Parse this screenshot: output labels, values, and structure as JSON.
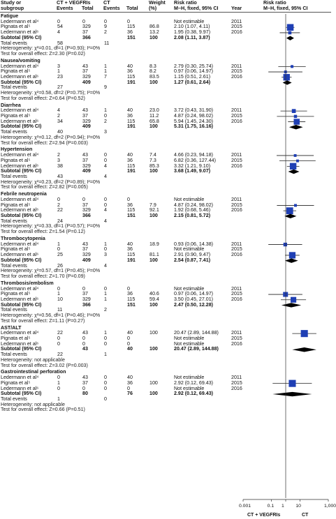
{
  "headers": {
    "study": "Study or",
    "study2": "subgroup",
    "exp": "CT + VEGFRIs",
    "exp_e": "Events",
    "exp_t": "Total",
    "ctl": "CT",
    "ctl_e": "Events",
    "ctl_t": "Total",
    "w": "Weight",
    "w2": "(%)",
    "rr": "Risk ratio",
    "rr2": "M–H, fixed, 95% CI",
    "yr": "Year",
    "rrp": "Risk ratio",
    "rrp2": "M–H, fixed, 95% CI"
  },
  "legend": {
    "left": "CT + VEGFRIs",
    "right": "CT"
  },
  "chart_data": {
    "type": "forest",
    "x_scale": "log",
    "xlim": [
      0.001,
      1000
    ],
    "x_ticks": [
      "0.001",
      "0.1",
      "1",
      "10",
      "1,000"
    ],
    "x_tick_values": [
      0.001,
      0.1,
      1,
      10,
      1000
    ],
    "groups": [
      {
        "name": "Fatigue",
        "studies": [
          {
            "study": "Ledermann et al⁴",
            "e1": "0",
            "t1": "0",
            "e2": "0",
            "t2": "0",
            "w": "",
            "rr": "Not estimable",
            "year": "2011",
            "est": null,
            "lo": null,
            "hi": null
          },
          {
            "study": "Pignata et al⁵",
            "e1": "54",
            "t1": "329",
            "e2": "9",
            "t2": "115",
            "w": "86.8",
            "rr": "2.10 (1.07, 4.11)",
            "year": "2015",
            "est": 2.1,
            "lo": 1.07,
            "hi": 4.11
          },
          {
            "study": "Ledermann et al⁶",
            "e1": "4",
            "t1": "37",
            "e2": "2",
            "t2": "36",
            "w": "13.2",
            "rr": "1.95 (0.38, 9.97)",
            "year": "2016",
            "est": 1.95,
            "lo": 0.38,
            "hi": 9.97
          }
        ],
        "subtotal": {
          "label": "Subtotal (95% CI)",
          "t1": "366",
          "t2": "151",
          "w": "100",
          "rr": "2.08 (1.11, 3.87)",
          "est": 2.08,
          "lo": 1.11,
          "hi": 3.87
        },
        "total_events": {
          "label": "Total events",
          "e1": "58",
          "e2": "11"
        },
        "het": "Heterogeneity: χ²=0.01, df=1 (P=0.93); I²=0%",
        "test": "Test for overall effect: Z=2.30 (P=0.02)"
      },
      {
        "name": "Nausea/vomiting",
        "studies": [
          {
            "study": "Ledermann et al⁴",
            "e1": "3",
            "t1": "43",
            "e2": "1",
            "t2": "40",
            "w": "8.3",
            "rr": "2.79 (0.30, 25.74)",
            "year": "2011",
            "est": 2.79,
            "lo": 0.3,
            "hi": 25.74
          },
          {
            "study": "Pignata et al⁵",
            "e1": "1",
            "t1": "37",
            "e2": "1",
            "t2": "36",
            "w": "8.2",
            "rr": "0.97 (0.06, 14.97)",
            "year": "2015",
            "est": 0.97,
            "lo": 0.06,
            "hi": 14.97
          },
          {
            "study": "Ledermann et al⁶",
            "e1": "23",
            "t1": "329",
            "e2": "7",
            "t2": "115",
            "w": "83.5",
            "rr": "1.15 (0.51, 2.61)",
            "year": "2016",
            "est": 1.15,
            "lo": 0.51,
            "hi": 2.61
          }
        ],
        "subtotal": {
          "label": "Subtotal (95% CI)",
          "t1": "409",
          "t2": "191",
          "w": "100",
          "rr": "1.27 (0.61, 2.64)",
          "est": 1.27,
          "lo": 0.61,
          "hi": 2.64
        },
        "total_events": {
          "label": "Total events",
          "e1": "27",
          "e2": "9"
        },
        "het": "Heterogeneity: χ²=0.58, df=2 (P=0.75); I²=0%",
        "test": "Test for overall effect: Z=0.64 (P=0.52)"
      },
      {
        "name": "Diarrhea",
        "studies": [
          {
            "study": "Ledermann et al⁴",
            "e1": "4",
            "t1": "43",
            "e2": "1",
            "t2": "40",
            "w": "23.0",
            "rr": "3.72 (0.43, 31.90)",
            "year": "2011",
            "est": 3.72,
            "lo": 0.43,
            "hi": 31.9
          },
          {
            "study": "Pignata et al⁵",
            "e1": "2",
            "t1": "37",
            "e2": "0",
            "t2": "36",
            "w": "11.2",
            "rr": "4.87 (0.24, 98.02)",
            "year": "2015",
            "est": 4.87,
            "lo": 0.24,
            "hi": 98.02
          },
          {
            "study": "Ledermann et al⁶",
            "e1": "34",
            "t1": "329",
            "e2": "2",
            "t2": "115",
            "w": "65.8",
            "rr": "5.94 (1.45, 24.30)",
            "year": "2016",
            "est": 5.94,
            "lo": 1.45,
            "hi": 24.3
          }
        ],
        "subtotal": {
          "label": "Subtotal (95% CI)",
          "t1": "409",
          "t2": "191",
          "w": "100",
          "rr": "5.31 (1.75, 16.16)",
          "est": 5.31,
          "lo": 1.75,
          "hi": 16.16
        },
        "total_events": {
          "label": "Total events",
          "e1": "40",
          "e2": "3"
        },
        "het": "Heterogeneity: χ²=0.12, df=2 (P=0.94); I²=0%",
        "test": "Test for overall effect: Z=2.94 (P=0.003)"
      },
      {
        "name": "Hypertension",
        "studies": [
          {
            "study": "Ledermann et al⁴",
            "e1": "2",
            "t1": "43",
            "e2": "0",
            "t2": "40",
            "w": "7.4",
            "rr": "4.66 (0.23, 94.18)",
            "year": "2011",
            "est": 4.66,
            "lo": 0.23,
            "hi": 94.18
          },
          {
            "study": "Pignata et al⁵",
            "e1": "3",
            "t1": "37",
            "e2": "0",
            "t2": "36",
            "w": "7.3",
            "rr": "6.82 (0.36, 127.44)",
            "year": "2015",
            "est": 6.82,
            "lo": 0.36,
            "hi": 127.44
          },
          {
            "study": "Ledermann et al⁶",
            "e1": "38",
            "t1": "329",
            "e2": "4",
            "t2": "115",
            "w": "85.3",
            "rr": "3.32 (1.21, 9.10)",
            "year": "2016",
            "est": 3.32,
            "lo": 1.21,
            "hi": 9.1
          }
        ],
        "subtotal": {
          "label": "Subtotal (95% CI)",
          "t1": "409",
          "t2": "191",
          "w": "100",
          "rr": "3.68 (1.49, 9.07)",
          "est": 3.68,
          "lo": 1.49,
          "hi": 9.07
        },
        "total_events": {
          "label": "Total events",
          "e1": "43",
          "e2": "4"
        },
        "het": "Heterogeneity: χ²=0.23, df=2 (P=0.89); I²=0%",
        "test": "Test for overall effect: Z=2.82 (P=0.005)"
      },
      {
        "name": "Febrile neutropenia",
        "studies": [
          {
            "study": "Ledermann et al⁴",
            "e1": "0",
            "t1": "0",
            "e2": "0",
            "t2": "0",
            "w": "",
            "rr": "Not estimable",
            "year": "2011",
            "est": null,
            "lo": null,
            "hi": null
          },
          {
            "study": "Pignata et al⁵",
            "e1": "2",
            "t1": "37",
            "e2": "0",
            "t2": "36",
            "w": "7.9",
            "rr": "4.87 (0.24, 98.02)",
            "year": "2015",
            "est": 4.87,
            "lo": 0.24,
            "hi": 98.02
          },
          {
            "study": "Ledermann et al⁶",
            "e1": "22",
            "t1": "329",
            "e2": "4",
            "t2": "115",
            "w": "92.1",
            "rr": "1.92 (0.68, 5.46)",
            "year": "2016",
            "est": 1.92,
            "lo": 0.68,
            "hi": 5.46
          }
        ],
        "subtotal": {
          "label": "Subtotal (95% CI)",
          "t1": "366",
          "t2": "151",
          "w": "100",
          "rr": "2.15 (0.81, 5.72)",
          "est": 2.15,
          "lo": 0.81,
          "hi": 5.72
        },
        "total_events": {
          "label": "Total events",
          "e1": "24",
          "e2": "4"
        },
        "het": "Heterogeneity: χ²=0.33, df=1 (P=0.57); I²=0%",
        "test": "Test for overall effect: Z=1.54 (P=0.12)"
      },
      {
        "name": "Thrombocytopenia",
        "studies": [
          {
            "study": "Ledermann et al⁴",
            "e1": "1",
            "t1": "43",
            "e2": "1",
            "t2": "40",
            "w": "18.9",
            "rr": "0.93 (0.06, 14.38)",
            "year": "2011",
            "est": 0.93,
            "lo": 0.06,
            "hi": 14.38
          },
          {
            "study": "Pignata et al⁵",
            "e1": "0",
            "t1": "37",
            "e2": "0",
            "t2": "36",
            "w": "",
            "rr": "Not estimable",
            "year": "2015",
            "est": null,
            "lo": null,
            "hi": null
          },
          {
            "study": "Ledermann et al⁶",
            "e1": "25",
            "t1": "329",
            "e2": "3",
            "t2": "115",
            "w": "81.1",
            "rr": "2.91 (0.90, 9.47)",
            "year": "2016",
            "est": 2.91,
            "lo": 0.9,
            "hi": 9.47
          }
        ],
        "subtotal": {
          "label": "Subtotal (95% CI)",
          "t1": "409",
          "t2": "191",
          "w": "100",
          "rr": "2.54 (0.87, 7.41)",
          "est": 2.54,
          "lo": 0.87,
          "hi": 7.41
        },
        "total_events": {
          "label": "Total events",
          "e1": "26",
          "e2": "4"
        },
        "het": "Heterogeneity: χ²=0.57, df=1 (P=0.45); I²=0%",
        "test": "Test for overall effect: Z=1.70 (P=0.09)"
      },
      {
        "name": "Thrombosis/embolism",
        "studies": [
          {
            "study": "Ledermann et al⁴",
            "e1": "0",
            "t1": "0",
            "e2": "0",
            "t2": "0",
            "w": "",
            "rr": "Not estimable",
            "year": "2011",
            "est": null,
            "lo": null,
            "hi": null
          },
          {
            "study": "Pignata et al⁵",
            "e1": "1",
            "t1": "37",
            "e2": "1",
            "t2": "36",
            "w": "40.6",
            "rr": "0.97 (0.06, 14.97)",
            "year": "2015",
            "est": 0.97,
            "lo": 0.06,
            "hi": 14.97
          },
          {
            "study": "Ledermann et al⁶",
            "e1": "10",
            "t1": "329",
            "e2": "1",
            "t2": "115",
            "w": "59.4",
            "rr": "3.50 (0.45, 27.01)",
            "year": "2016",
            "est": 3.5,
            "lo": 0.45,
            "hi": 27.01
          }
        ],
        "subtotal": {
          "label": "Subtotal (95% CI)",
          "t1": "366",
          "t2": "151",
          "w": "100",
          "rr": "2.47 (0.50, 12.28)",
          "est": 2.47,
          "lo": 0.5,
          "hi": 12.28
        },
        "total_events": {
          "label": "Total events",
          "e1": "11",
          "e2": "2"
        },
        "het": "Heterogeneity: χ²=0.56, df=1 (P=0.46); I²=0%",
        "test": "Test for overall effect: Z=1.11 (P=0.27)"
      },
      {
        "name": "AST/ALT",
        "studies": [
          {
            "study": "Ledermann et al⁴",
            "e1": "22",
            "t1": "43",
            "e2": "1",
            "t2": "40",
            "w": "100",
            "rr": "20.47 (2.89, 144.88)",
            "year": "2011",
            "est": 20.47,
            "lo": 2.89,
            "hi": 144.88
          },
          {
            "study": "Pignata et al⁵",
            "e1": "0",
            "t1": "0",
            "e2": "0",
            "t2": "0",
            "w": "",
            "rr": "Not estimable",
            "year": "2015",
            "est": null,
            "lo": null,
            "hi": null
          },
          {
            "study": "Ledermann et al⁶",
            "e1": "0",
            "t1": "0",
            "e2": "0",
            "t2": "0",
            "w": "",
            "rr": "Not estimable",
            "year": "2016",
            "est": null,
            "lo": null,
            "hi": null
          }
        ],
        "subtotal": {
          "label": "Subtotal (95% CI)",
          "t1": "43",
          "t2": "40",
          "w": "100",
          "rr": "20.47 (2.89, 144.88)",
          "est": 20.47,
          "lo": 2.89,
          "hi": 144.88
        },
        "total_events": {
          "label": "Total events",
          "e1": "22",
          "e2": "1"
        },
        "het": "Heterogeneity: not applicable",
        "test": "Test for overall effect: Z=3.02 (P=0.003)"
      },
      {
        "name": "Gastrointestinal perforation",
        "studies": [
          {
            "study": "Ledermann et al⁴",
            "e1": "0",
            "t1": "43",
            "e2": "0",
            "t2": "40",
            "w": "",
            "rr": "Not estimable",
            "year": "2011",
            "est": null,
            "lo": null,
            "hi": null
          },
          {
            "study": "Pignata et al⁵",
            "e1": "1",
            "t1": "37",
            "e2": "0",
            "t2": "36",
            "w": "100",
            "rr": "2.92 (0.12, 69.43)",
            "year": "2015",
            "est": 2.92,
            "lo": 0.12,
            "hi": 69.43
          },
          {
            "study": "Ledermann et al⁶",
            "e1": "0",
            "t1": "0",
            "e2": "0",
            "t2": "0",
            "w": "",
            "rr": "Not estimable",
            "year": "2016",
            "est": null,
            "lo": null,
            "hi": null
          }
        ],
        "subtotal": {
          "label": "Subtotal (95% CI)",
          "t1": "80",
          "t2": "76",
          "w": "100",
          "rr": "2.92 (0.12, 69.43)",
          "est": 2.92,
          "lo": 0.12,
          "hi": 69.43
        },
        "total_events": {
          "label": "Total events",
          "e1": "1",
          "e2": "0"
        },
        "het": "Heterogeneity: not applicable",
        "test": "Test for overall effect: Z=0.66 (P=0.51)"
      }
    ]
  }
}
